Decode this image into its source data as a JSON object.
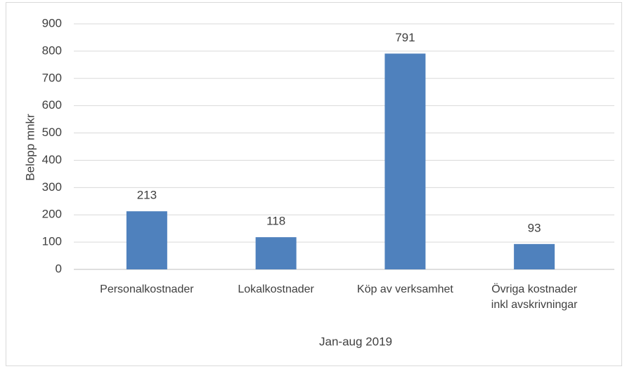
{
  "chart_data": {
    "type": "bar",
    "y_axis_label": "Belopp mnkr",
    "x_axis_label": "Jan-aug 2019",
    "categories": [
      "Personalkostnader",
      "Lokalkostnader",
      "Köp av verksamhet",
      "Övriga kostnader inkl avskrivningar"
    ],
    "values": [
      213,
      118,
      791,
      93
    ],
    "color": "#4f81bd",
    "ylim": [
      0,
      900
    ],
    "yticks": [
      0,
      100,
      200,
      300,
      400,
      500,
      600,
      700,
      800,
      900
    ],
    "grid": true,
    "data_labels": true
  }
}
